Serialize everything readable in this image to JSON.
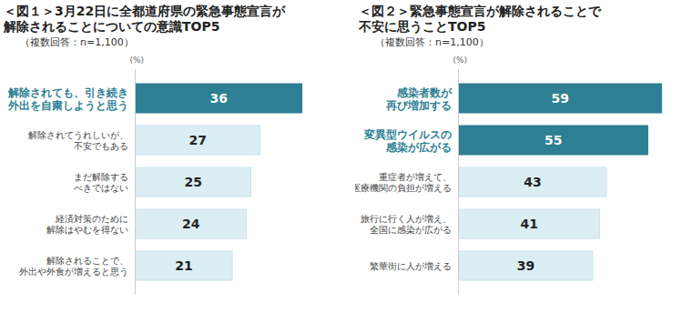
{
  "chart_data": [
    {
      "type": "bar",
      "title": "＜図１＞3月22日に全都道府県の緊急事態宣言が\n解除されることについての意識TOP5",
      "subtitle": "（複数回答：n=1,100）",
      "xlabel": "(%)",
      "orientation": "horizontal",
      "categories": [
        "解除されても、引き続き\n外出を自粛しようと思う",
        "解除されてうれしいが、\n不安でもある",
        "まだ解除する\nべきではない",
        "経済対策のために\n解除はやむを得ない",
        "解除されることで、\n外出や外食が増えると思う"
      ],
      "values": [
        36,
        27,
        25,
        24,
        21
      ],
      "colors": [
        "#2e7f93",
        "#dbeef4",
        "#dbeef4",
        "#dbeef4",
        "#dbeef4"
      ],
      "xlim": [
        0,
        40
      ],
      "data_labels": true,
      "tick_labels": "y",
      "grid": false
    },
    {
      "type": "bar",
      "title": "＜図２＞緊急事態宣言が解除されることで\n不安に思うことTOP5",
      "subtitle": "（複数回答：n=1,100）",
      "xlabel": "(%)",
      "orientation": "horizontal",
      "categories": [
        "感染者数が\n再び増加する",
        "変異型ウイルスの\n感染が広がる",
        "重症者が増えて、\n医療機関の負担が増える",
        "旅行に行く人が増え、\n全国に感染が広がる",
        "繁華街に人が増える"
      ],
      "values": [
        59,
        55,
        43,
        41,
        39
      ],
      "colors": [
        "#2e7f93",
        "#2e7f93",
        "#dbeef4",
        "#dbeef4",
        "#dbeef4"
      ],
      "xlim": [
        0,
        62
      ],
      "data_labels": true,
      "tick_labels": "y",
      "grid": false
    }
  ]
}
